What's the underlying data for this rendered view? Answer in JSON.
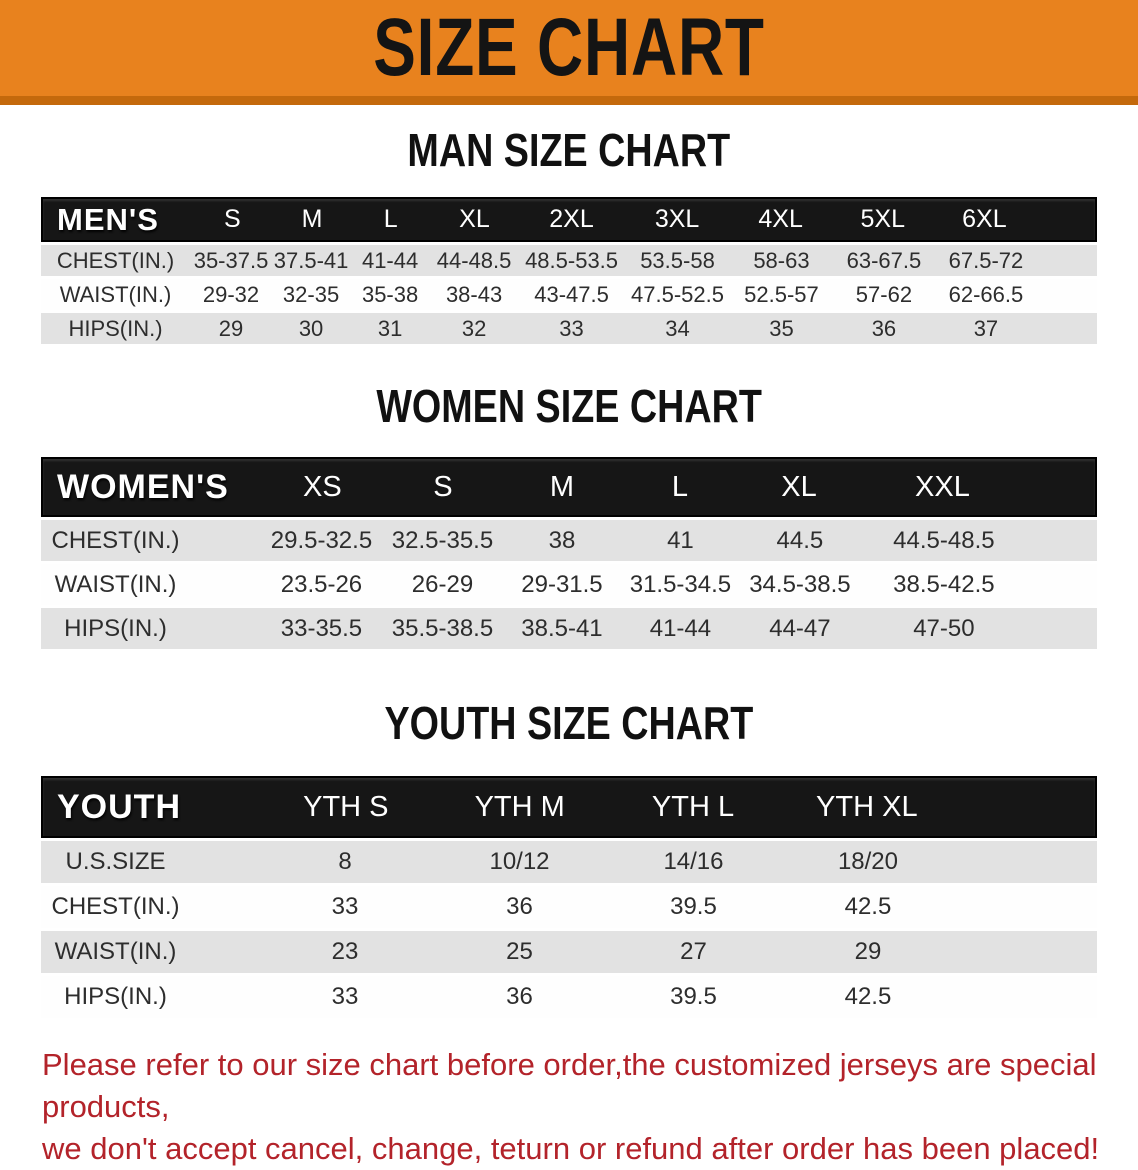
{
  "banner": {
    "title": "SIZE CHART",
    "bg_color": "#E8821E",
    "bg_dark_strip": "#C4690C",
    "text_color": "#141414"
  },
  "sections": [
    {
      "id": "men",
      "title": "MAN SIZE CHART",
      "header_label": "MEN'S",
      "sizes": [
        "S",
        "M",
        "L",
        "XL",
        "2XL",
        "3XL",
        "4XL",
        "5XL",
        "6XL"
      ],
      "rows": [
        {
          "label": "CHEST(IN.)",
          "values": [
            "35-37.5",
            "37.5-41",
            "41-44",
            "44-48.5",
            "48.5-53.5",
            "53.5-58",
            "58-63",
            "63-67.5",
            "67.5-72"
          ]
        },
        {
          "label": "WAIST(IN.)",
          "values": [
            "29-32",
            "32-35",
            "35-38",
            "38-43",
            "43-47.5",
            "47.5-52.5",
            "52.5-57",
            "57-62",
            "62-66.5"
          ]
        },
        {
          "label": "HIPS(IN.)",
          "values": [
            "29",
            "30",
            "31",
            "32",
            "33",
            "34",
            "35",
            "36",
            "37"
          ]
        }
      ]
    },
    {
      "id": "women",
      "title": "WOMEN SIZE CHART",
      "header_label": "WOMEN'S",
      "sizes": [
        "XS",
        "S",
        "M",
        "L",
        "XL",
        "XXL"
      ],
      "rows": [
        {
          "label": "CHEST(IN.)",
          "values": [
            "29.5-32.5",
            "32.5-35.5",
            "38",
            "41",
            "44.5",
            "44.5-48.5"
          ]
        },
        {
          "label": "WAIST(IN.)",
          "values": [
            "23.5-26",
            "26-29",
            "29-31.5",
            "31.5-34.5",
            "34.5-38.5",
            "38.5-42.5"
          ]
        },
        {
          "label": "HIPS(IN.)",
          "values": [
            "33-35.5",
            "35.5-38.5",
            "38.5-41",
            "41-44",
            "44-47",
            "47-50"
          ]
        }
      ]
    },
    {
      "id": "youth",
      "title": "YOUTH SIZE CHART",
      "header_label": "YOUTH",
      "sizes": [
        "YTH S",
        "YTH M",
        "YTH L",
        "YTH XL"
      ],
      "rows": [
        {
          "label": "U.S.SIZE",
          "values": [
            "8",
            "10/12",
            "14/16",
            "18/20"
          ]
        },
        {
          "label": "CHEST(IN.)",
          "values": [
            "33",
            "36",
            "39.5",
            "42.5"
          ]
        },
        {
          "label": "WAIST(IN.)",
          "values": [
            "23",
            "25",
            "27",
            "29"
          ]
        },
        {
          "label": "HIPS(IN.)",
          "values": [
            "33",
            "36",
            "39.5",
            "42.5"
          ]
        }
      ]
    }
  ],
  "table_colors": {
    "header_bg": "#161616",
    "header_text": "#ffffff",
    "row_gray": "#E2E2E2",
    "row_white": "#FEFEFE",
    "cell_text": "#2d2d2d"
  },
  "disclaimer": {
    "line1": "Please refer to our size chart before order,the customized jerseys are special products,",
    "line2": "we don't accept cancel, change, teturn or refund after order has been placed!",
    "color": "#B3232A"
  }
}
